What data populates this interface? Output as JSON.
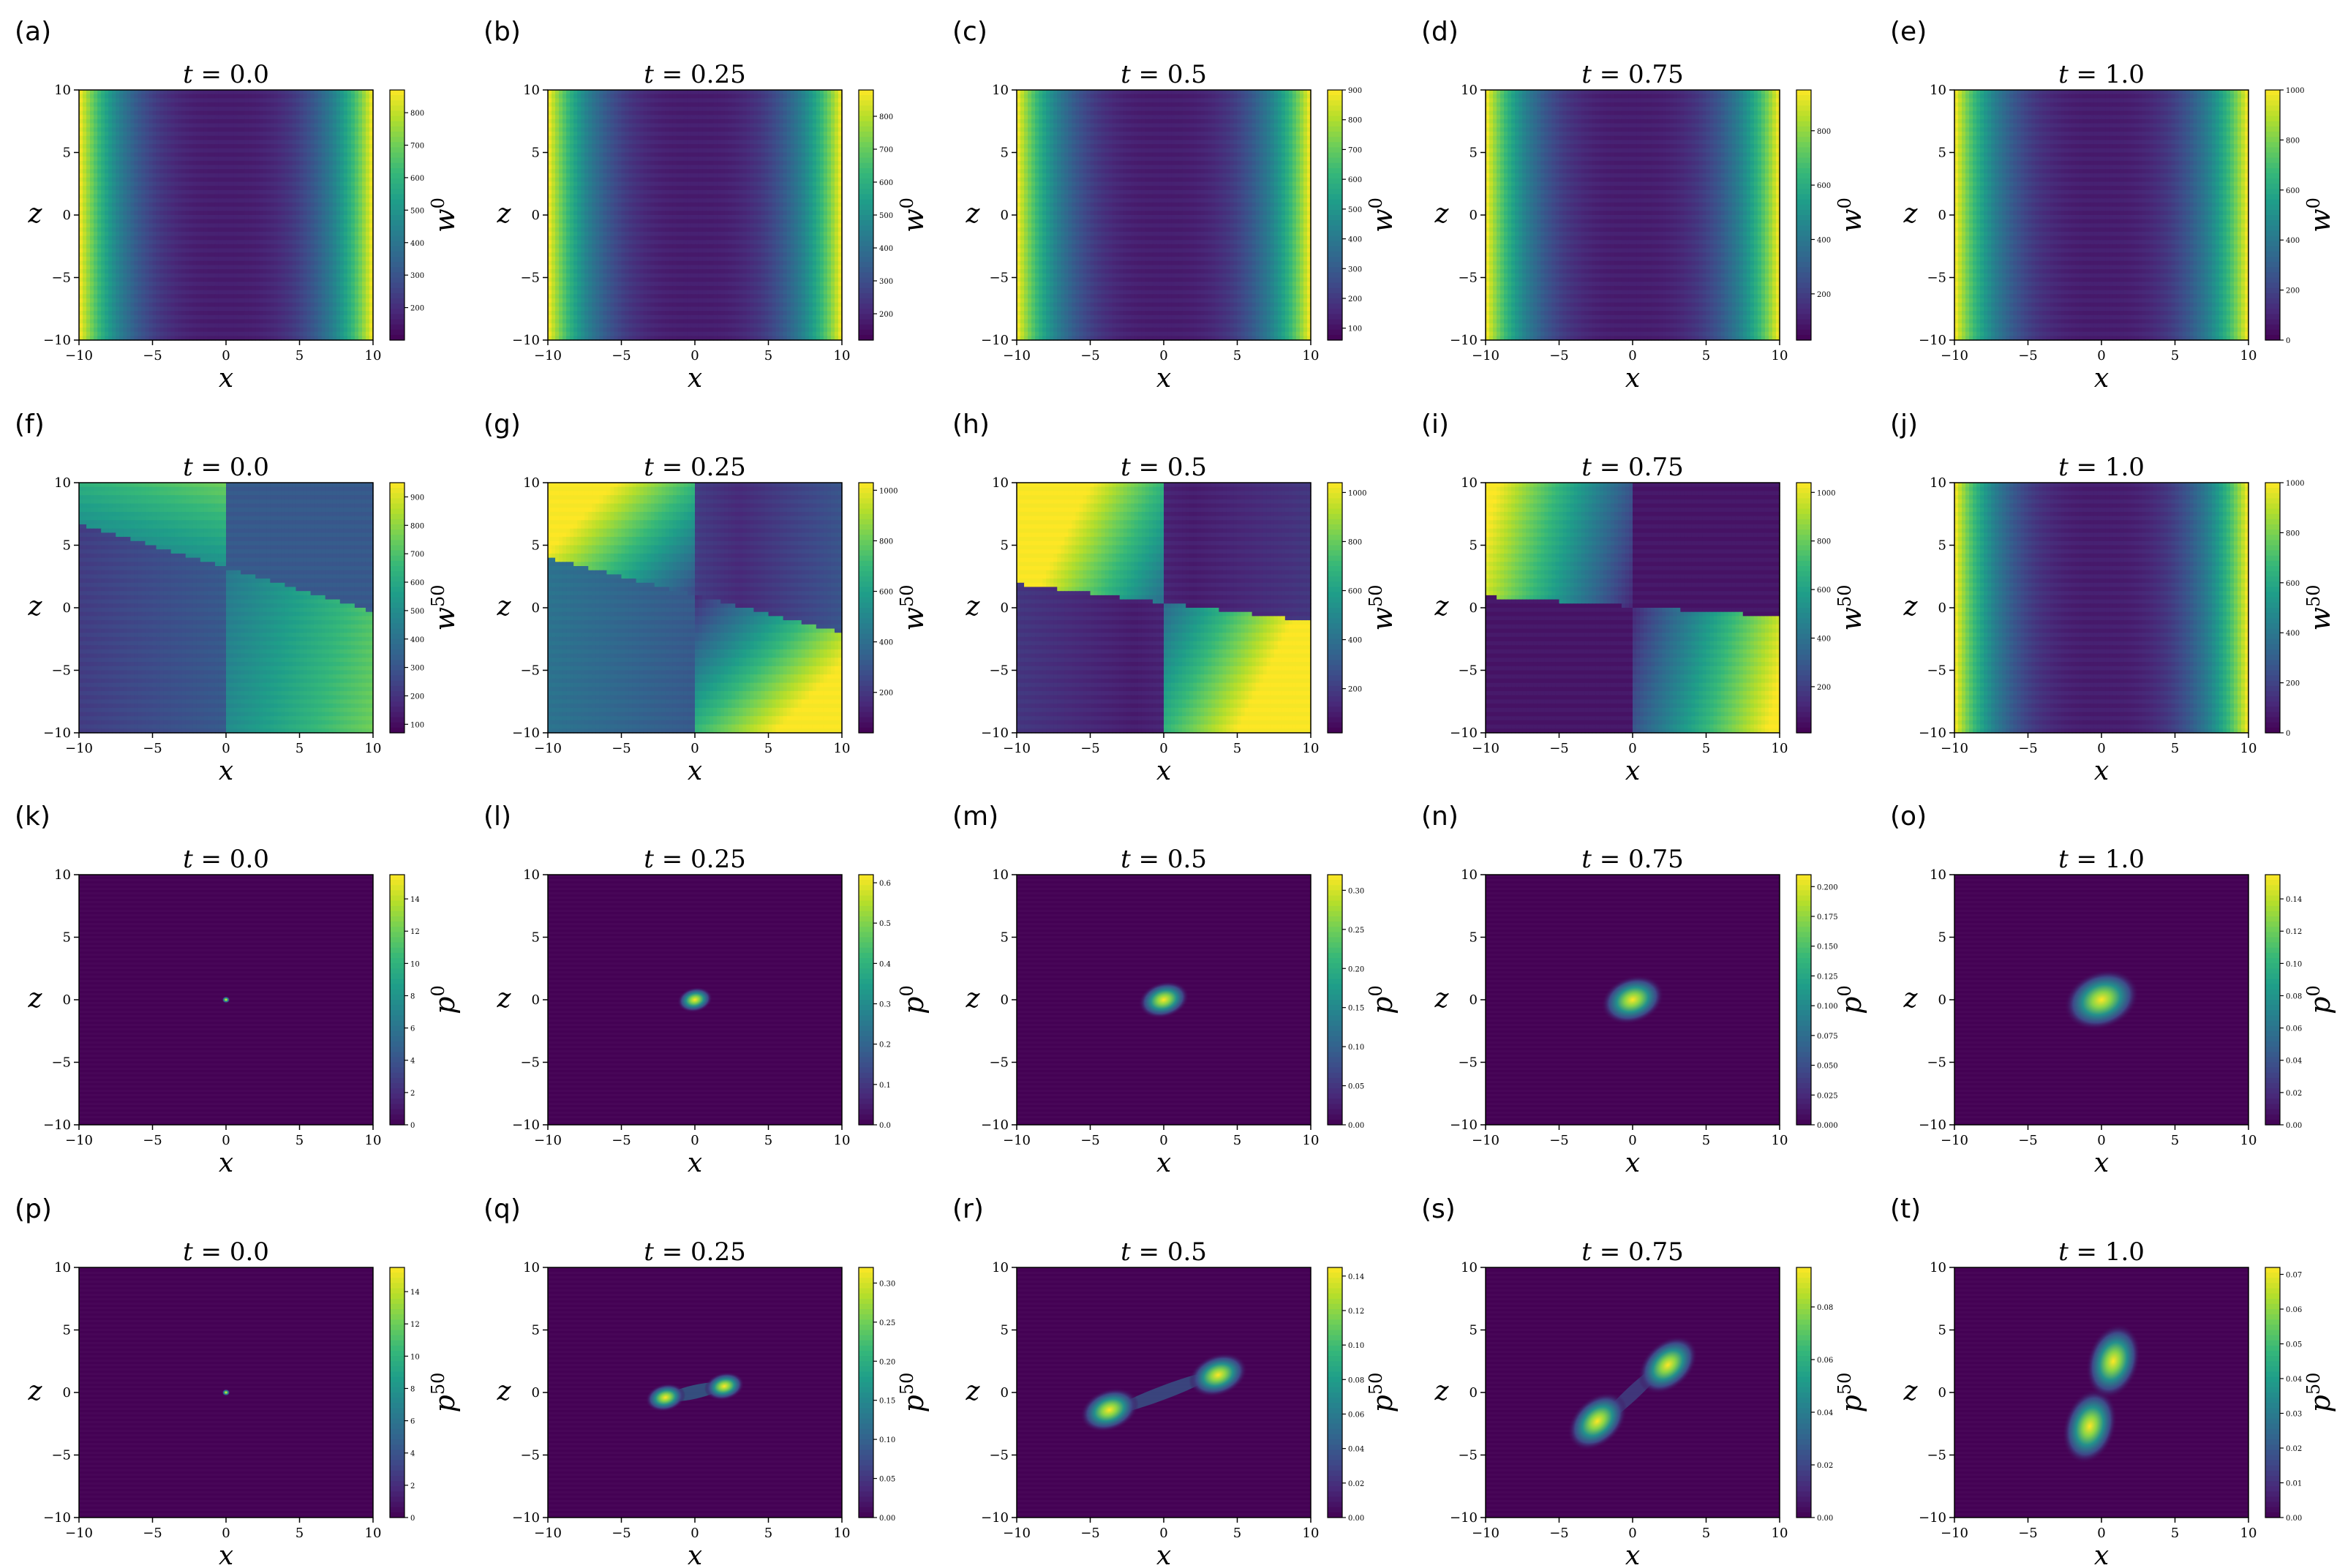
{
  "chart_data": {
    "type": "heatmap",
    "layout": "4 rows x 5 columns",
    "colormap": [
      "#440154",
      "#482878",
      "#3e4a89",
      "#31688e",
      "#26828e",
      "#1f9e89",
      "#35b779",
      "#6ece58",
      "#b5de2b",
      "#fde725"
    ],
    "x_range": [
      -10,
      10
    ],
    "z_range": [
      -10,
      10
    ],
    "xlabel": "x",
    "ylabel": "z",
    "axis_ticks": [
      "-10",
      "-5",
      "0",
      "5",
      "10"
    ],
    "panels": [
      {
        "label": "(a)",
        "t": "0.0",
        "sym": "w",
        "sup": "0",
        "field": "well",
        "cb_range": [
          100,
          870
        ],
        "cb_ticks": [
          "200",
          "300",
          "400",
          "500",
          "600",
          "700",
          "800"
        ]
      },
      {
        "label": "(b)",
        "t": "0.25",
        "sym": "w",
        "sup": "0",
        "field": "well",
        "cb_range": [
          120,
          880
        ],
        "cb_ticks": [
          "200",
          "300",
          "400",
          "500",
          "600",
          "700",
          "800"
        ]
      },
      {
        "label": "(c)",
        "t": "0.5",
        "sym": "w",
        "sup": "0",
        "field": "well",
        "cb_range": [
          60,
          900
        ],
        "cb_ticks": [
          "100",
          "200",
          "300",
          "400",
          "500",
          "600",
          "700",
          "800",
          "900"
        ]
      },
      {
        "label": "(d)",
        "t": "0.75",
        "sym": "w",
        "sup": "0",
        "field": "well",
        "cb_range": [
          30,
          950
        ],
        "cb_ticks": [
          "200",
          "400",
          "600",
          "800"
        ]
      },
      {
        "label": "(e)",
        "t": "1.0",
        "sym": "w",
        "sup": "0",
        "field": "well",
        "cb_range": [
          0,
          1000
        ],
        "cb_ticks": [
          "0",
          "200",
          "400",
          "600",
          "800",
          "1000"
        ]
      },
      {
        "label": "(f)",
        "t": "0.0",
        "sym": "w",
        "sup": "50",
        "field": "split0",
        "cb_range": [
          70,
          950
        ],
        "cb_ticks": [
          "100",
          "200",
          "300",
          "400",
          "500",
          "600",
          "700",
          "800",
          "900"
        ]
      },
      {
        "label": "(g)",
        "t": "0.25",
        "sym": "w",
        "sup": "50",
        "field": "split1",
        "cb_range": [
          40,
          1030
        ],
        "cb_ticks": [
          "200",
          "400",
          "600",
          "800",
          "1000"
        ]
      },
      {
        "label": "(h)",
        "t": "0.5",
        "sym": "w",
        "sup": "50",
        "field": "split2",
        "cb_range": [
          20,
          1040
        ],
        "cb_ticks": [
          "200",
          "400",
          "600",
          "800",
          "1000"
        ]
      },
      {
        "label": "(i)",
        "t": "0.75",
        "sym": "w",
        "sup": "50",
        "field": "split3",
        "cb_range": [
          10,
          1040
        ],
        "cb_ticks": [
          "200",
          "400",
          "600",
          "800",
          "1000"
        ]
      },
      {
        "label": "(j)",
        "t": "1.0",
        "sym": "w",
        "sup": "50",
        "field": "well",
        "cb_range": [
          0,
          1000
        ],
        "cb_ticks": [
          "0",
          "200",
          "400",
          "600",
          "800",
          "1000"
        ]
      },
      {
        "label": "(k)",
        "t": "0.0",
        "sym": "p",
        "sup": "0",
        "field": "blob",
        "blob_sx": 0.12,
        "blob_sz": 0.12,
        "blob_rho": 0,
        "cb_range": [
          0,
          15.5
        ],
        "cb_ticks": [
          "0",
          "2",
          "4",
          "6",
          "8",
          "10",
          "12",
          "14"
        ]
      },
      {
        "label": "(l)",
        "t": "0.25",
        "sym": "p",
        "sup": "0",
        "field": "blob",
        "blob_sx": 0.55,
        "blob_sz": 0.45,
        "blob_rho": 0.3,
        "cb_range": [
          0,
          0.62
        ],
        "cb_ticks": [
          "0.0",
          "0.1",
          "0.2",
          "0.3",
          "0.4",
          "0.5",
          "0.6"
        ]
      },
      {
        "label": "(m)",
        "t": "0.5",
        "sym": "p",
        "sup": "0",
        "field": "blob",
        "blob_sx": 0.8,
        "blob_sz": 0.65,
        "blob_rho": 0.4,
        "cb_range": [
          0,
          0.32
        ],
        "cb_ticks": [
          "0.00",
          "0.05",
          "0.10",
          "0.15",
          "0.20",
          "0.25",
          "0.30"
        ]
      },
      {
        "label": "(n)",
        "t": "0.75",
        "sym": "p",
        "sup": "0",
        "field": "blob",
        "blob_sx": 1.0,
        "blob_sz": 0.85,
        "blob_rho": 0.5,
        "cb_range": [
          0,
          0.21
        ],
        "cb_ticks": [
          "0.000",
          "0.025",
          "0.050",
          "0.075",
          "0.100",
          "0.125",
          "0.150",
          "0.175",
          "0.200"
        ]
      },
      {
        "label": "(o)",
        "t": "1.0",
        "sym": "p",
        "sup": "0",
        "field": "blob",
        "blob_sx": 1.2,
        "blob_sz": 1.05,
        "blob_rho": 0.55,
        "cb_range": [
          0,
          0.155
        ],
        "cb_ticks": [
          "0.00",
          "0.02",
          "0.04",
          "0.06",
          "0.08",
          "0.10",
          "0.12",
          "0.14"
        ]
      },
      {
        "label": "(p)",
        "t": "0.0",
        "sym": "p",
        "sup": "50",
        "field": "blob",
        "blob_sx": 0.12,
        "blob_sz": 0.12,
        "blob_rho": 0,
        "cb_range": [
          0,
          15.5
        ],
        "cb_ticks": [
          "0",
          "2",
          "4",
          "6",
          "8",
          "10",
          "12",
          "14"
        ]
      },
      {
        "label": "(q)",
        "t": "0.25",
        "sym": "p",
        "sup": "50",
        "field": "twoblob",
        "b1": [
          -2.0,
          -0.4
        ],
        "b2": [
          2.0,
          0.5
        ],
        "blob_s": 0.5,
        "bridge": 0.45,
        "cb_range": [
          0,
          0.32
        ],
        "cb_ticks": [
          "0.00",
          "0.05",
          "0.10",
          "0.15",
          "0.20",
          "0.25",
          "0.30"
        ]
      },
      {
        "label": "(r)",
        "t": "0.5",
        "sym": "p",
        "sup": "50",
        "field": "twoblob",
        "b1": [
          -3.7,
          -1.4
        ],
        "b2": [
          3.7,
          1.4
        ],
        "blob_s": 0.75,
        "bridge": 0.3,
        "cb_range": [
          0,
          0.145
        ],
        "cb_ticks": [
          "0.00",
          "0.02",
          "0.04",
          "0.06",
          "0.08",
          "0.10",
          "0.12",
          "0.14"
        ]
      },
      {
        "label": "(s)",
        "t": "0.75",
        "sym": "p",
        "sup": "50",
        "field": "twoblob",
        "b1": [
          -2.4,
          -2.3
        ],
        "b2": [
          2.4,
          2.2
        ],
        "blob_s": 0.85,
        "bridge": 0.12,
        "cb_range": [
          0,
          0.095
        ],
        "cb_ticks": [
          "0.00",
          "0.02",
          "0.04",
          "0.06",
          "0.08"
        ]
      },
      {
        "label": "(t)",
        "t": "1.0",
        "sym": "p",
        "sup": "50",
        "field": "twoblob",
        "b1": [
          -0.8,
          -2.7
        ],
        "b2": [
          0.8,
          2.5
        ],
        "blob_s": 0.95,
        "bridge": 0.05,
        "cb_range": [
          0,
          0.072
        ],
        "cb_ticks": [
          "0.00",
          "0.01",
          "0.02",
          "0.03",
          "0.04",
          "0.05",
          "0.06",
          "0.07"
        ]
      }
    ]
  }
}
